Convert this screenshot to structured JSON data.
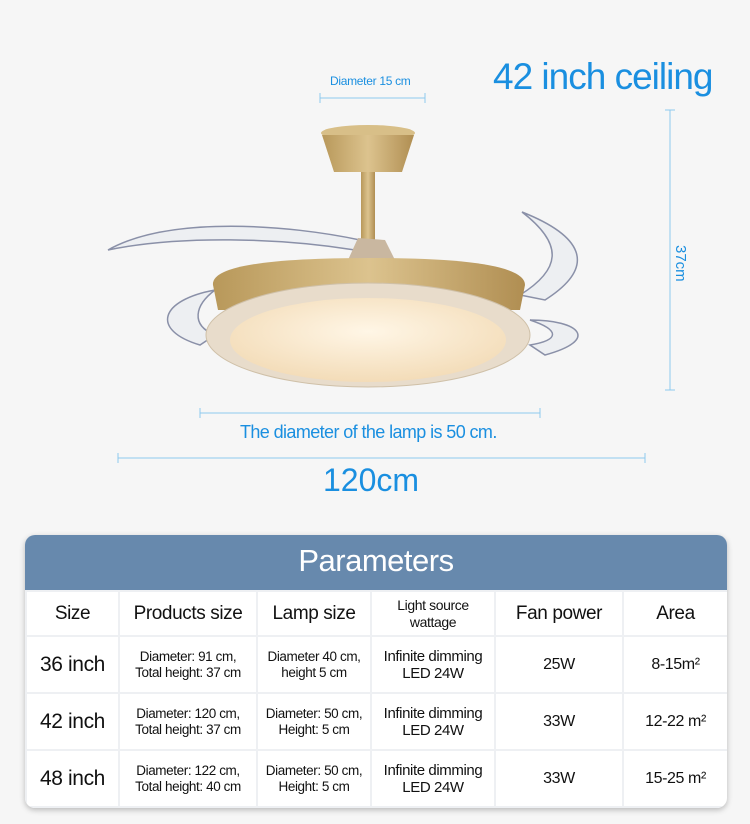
{
  "heading": "42 inch ceiling",
  "dimensions": {
    "mount_diameter": "Diameter 15 cm",
    "height": "37cm",
    "lamp_diameter": "The diameter of the lamp is 50 cm.",
    "total_diameter": "120cm"
  },
  "colors": {
    "accent": "#1a8fe0",
    "table_header": "#6789ad",
    "gold": "#c9a866"
  },
  "parameters": {
    "title": "Parameters",
    "columns": [
      "Size",
      "Products size",
      "Lamp size",
      "Light source wattage",
      "Fan power",
      "Area"
    ],
    "rows": [
      {
        "size": "36 inch",
        "products_size": [
          "Diameter: 91 cm,",
          "Total height: 37 cm"
        ],
        "lamp_size": [
          "Diameter 40 cm,",
          "height 5 cm"
        ],
        "light": [
          "Infinite dimming",
          "LED 24W"
        ],
        "fan_power": "25W",
        "area": "8-15m²"
      },
      {
        "size": "42 inch",
        "products_size": [
          "Diameter: 120 cm,",
          "Total height: 37 cm"
        ],
        "lamp_size": [
          "Diameter: 50 cm,",
          "Height: 5 cm"
        ],
        "light": [
          "Infinite dimming",
          "LED 24W"
        ],
        "fan_power": "33W",
        "area": "12-22 m²"
      },
      {
        "size": "48 inch",
        "products_size": [
          "Diameter: 122 cm,",
          "Total height: 40 cm"
        ],
        "lamp_size": [
          "Diameter: 50 cm,",
          "Height: 5 cm"
        ],
        "light": [
          "Infinite dimming",
          "LED 24W"
        ],
        "fan_power": "33W",
        "area": "15-25 m²"
      }
    ]
  }
}
